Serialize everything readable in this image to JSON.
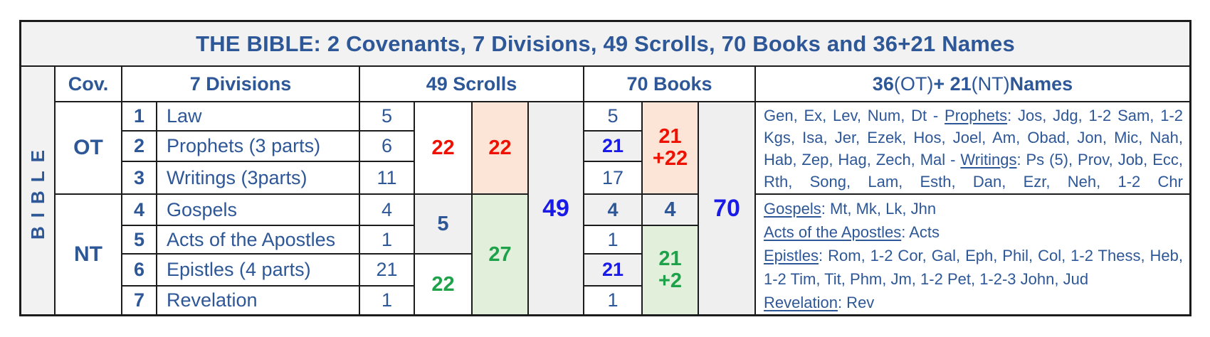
{
  "title": "THE BIBLE: 2 Covenants, 7 Divisions, 49 Scrolls, 70 Books and 36+21 Names",
  "side_label": "BIBLE",
  "header": {
    "covenant": "Cov.",
    "divisions": "7 Divisions",
    "scrolls": "49 Scrolls",
    "books": "70 Books",
    "names_bold_1": "36",
    "names_reg_1": " (OT) ",
    "names_bold_2": "+ 21",
    "names_reg_2": " (NT) ",
    "names_bold_3": "Names"
  },
  "covenants": {
    "ot": "OT",
    "nt": "NT"
  },
  "rows": [
    {
      "num": "1",
      "label": "Law",
      "scrolls": "5",
      "books": "5"
    },
    {
      "num": "2",
      "label": "Prophets (3 parts)",
      "scrolls": "6",
      "books": "21"
    },
    {
      "num": "3",
      "label": "Writings (3parts)",
      "scrolls": "11",
      "books": "17"
    },
    {
      "num": "4",
      "label": "Gospels",
      "scrolls": "4",
      "books": "4"
    },
    {
      "num": "5",
      "label": "Acts of the Apostles",
      "scrolls": "1",
      "books": "1"
    },
    {
      "num": "6",
      "label": "Epistles (4 parts)",
      "scrolls": "21",
      "books": "21"
    },
    {
      "num": "7",
      "label": "Revelation",
      "scrolls": "1",
      "books": "1"
    }
  ],
  "scroll_groups": {
    "ot_sum": "22",
    "ot_sum_highlight": "22",
    "nt_sub_1": "5",
    "nt_sub_2": "22",
    "nt_sum": "27",
    "total": "49"
  },
  "book_groups": {
    "ot_line1": "21",
    "ot_line2": "+22",
    "nt_gospels": "4",
    "nt_line1": "21",
    "nt_line2": "+2",
    "total": "70"
  },
  "names": {
    "ot": {
      "seg1": "Gen, Ex, Lev, Num, Dt - ",
      "prophets_label": "Prophets",
      "seg2": ": Jos, Jdg, 1-2 Sam, 1-2 Kgs, Isa, Jer, Ezek, Hos, Joel, Am, Obad, Jon, Mic, Nah, Hab, Zep, Hag, Zech, Mal - ",
      "writings_label": "Writings",
      "seg3": ": Ps (5), Prov, Job, Ecc, Rth, Song, Lam, Esth, Dan, Ezr, Neh, 1-2 Chr"
    },
    "nt": {
      "gospels_label": "Gospels",
      "gospels_books": ": Mt, Mk, Lk, Jhn",
      "acts_label": "Acts of the Apostles",
      "acts_books": ": Acts",
      "epistles_label": "Epistles",
      "epistles_books": ": Rom, 1-2 Cor, Gal, Eph, Phil, Col, 1-2 Thess, Heb, 1-2 Tim, Tit, Phm, Jm, 1-2 Pet, 1-2-3 John, Jud",
      "revelation_label": "Revelation",
      "revelation_books": ": Rev"
    }
  },
  "colors": {
    "steel_blue_text": "#2E5797",
    "vivid_blue": "#1A1AE8",
    "red": "#EE1100",
    "green": "#1DA24A",
    "peach_bg": "#FCE4D6",
    "light_green_bg": "#E2EFDA",
    "gray_bg": "#F0F0F0",
    "title_bg": "#F2F2F2",
    "border": "#1C1C1C"
  }
}
